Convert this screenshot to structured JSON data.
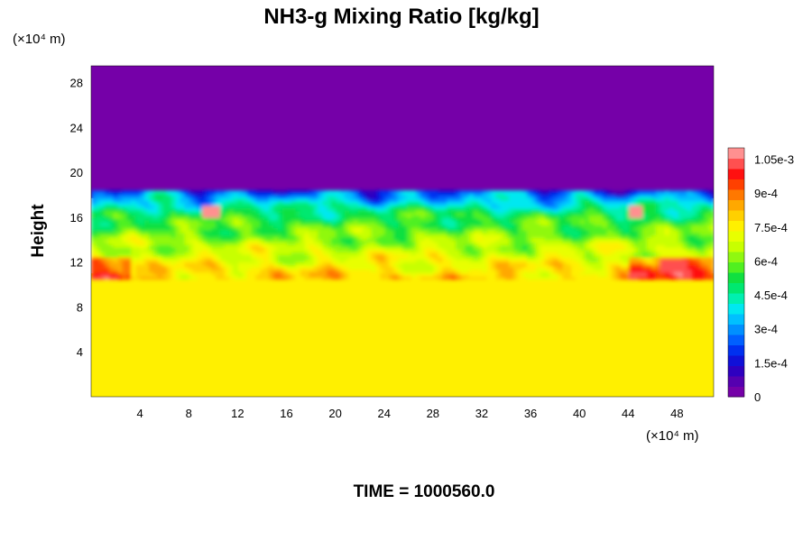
{
  "chart_data": {
    "type": "heatmap",
    "title": "NH3-g Mixing Ratio [kg/kg]",
    "ylabel": "Height",
    "x_unit": "(×10⁴ m)",
    "y_unit": "(×10⁴ m)",
    "x_ticks": [
      4,
      8,
      12,
      16,
      20,
      24,
      28,
      32,
      36,
      40,
      44,
      48
    ],
    "y_ticks": [
      4,
      8,
      12,
      16,
      20,
      24,
      28
    ],
    "xlim": [
      0,
      51
    ],
    "ylim": [
      0,
      29.5
    ],
    "colorbar": {
      "min": 0,
      "max": 0.0011,
      "labels": [
        {
          "value": 0,
          "text": "0"
        },
        {
          "value": 0.00015,
          "text": "1.5e-4"
        },
        {
          "value": 0.0003,
          "text": "3e-4"
        },
        {
          "value": 0.00045,
          "text": "4.5e-4"
        },
        {
          "value": 0.0006,
          "text": "6e-4"
        },
        {
          "value": 0.00075,
          "text": "7.5e-4"
        },
        {
          "value": 0.0009,
          "text": "9e-4"
        },
        {
          "value": 0.00105,
          "text": "1.05e-3"
        }
      ]
    },
    "field_summary": {
      "upper_layer_value": 0,
      "lower_layer_value": 0.00077,
      "mixing_layer_y_range": [
        10.5,
        18
      ]
    }
  },
  "footer": {
    "time_label": "TIME = 1000560.0"
  },
  "colors": {
    "upper_layer": "#7500a8",
    "lower_layer": "#dcff00"
  }
}
